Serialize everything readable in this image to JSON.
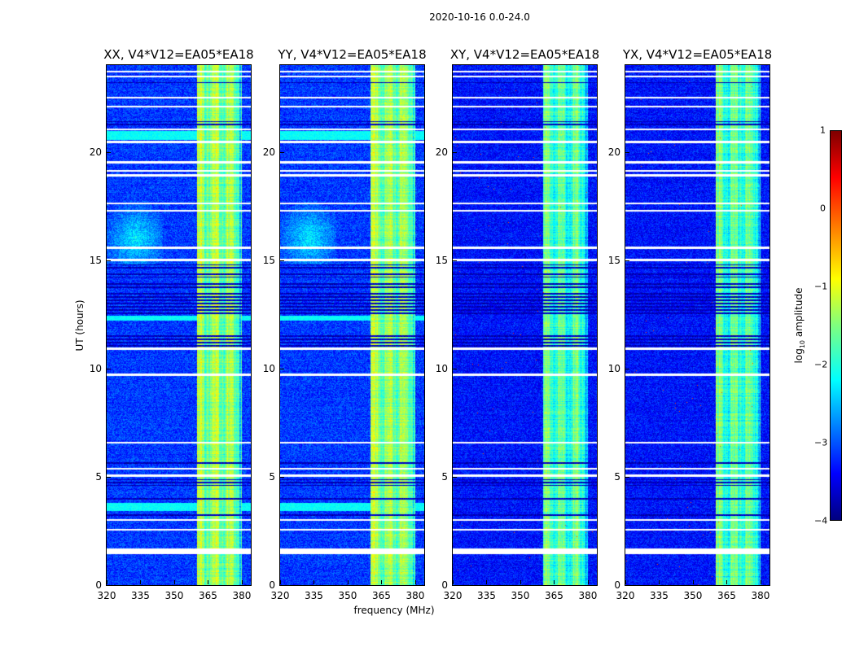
{
  "chart_data": {
    "type": "heatmap",
    "title": "2020-10-16 0.0-24.0",
    "xlabel": "frequency (MHz)",
    "ylabel": "UT (hours)",
    "xlim": [
      320,
      384
    ],
    "ylim": [
      0,
      24
    ],
    "xticks": [
      320,
      335,
      350,
      365,
      380
    ],
    "yticks": [
      0,
      5,
      10,
      15,
      20
    ],
    "colorbar": {
      "label_prefix": "log",
      "label_sub": "10",
      "label_suffix": " amplitude",
      "range": [
        -4,
        1
      ],
      "ticks": [
        "1",
        "0",
        "−1",
        "−2",
        "−3",
        "−4"
      ],
      "colormap": "jet"
    },
    "rfi_band_mhz": [
      360,
      380
    ],
    "flagged_hours": [
      [
        1.42,
        1.68
      ],
      [
        2.5,
        2.6
      ],
      [
        2.95,
        3.05
      ],
      [
        5.0,
        5.12
      ],
      [
        5.32,
        5.42
      ],
      [
        6.52,
        6.6
      ],
      [
        9.65,
        9.75
      ],
      [
        10.85,
        10.95
      ],
      [
        14.95,
        15.05
      ],
      [
        15.5,
        15.62
      ],
      [
        17.25,
        17.32
      ],
      [
        17.58,
        17.65
      ],
      [
        18.85,
        18.95
      ],
      [
        19.08,
        19.15
      ],
      [
        19.45,
        19.55
      ],
      [
        20.4,
        20.5
      ],
      [
        21.0,
        21.06
      ],
      [
        22.05,
        22.12
      ],
      [
        22.45,
        22.52
      ],
      [
        23.42,
        23.5
      ],
      [
        23.66,
        23.74
      ]
    ],
    "dropout_hours": [
      [
        3.1,
        3.3
      ],
      [
        3.9,
        4.1
      ],
      [
        4.6,
        4.9
      ],
      [
        5.6,
        5.7
      ],
      [
        11.0,
        11.6
      ],
      [
        12.5,
        13.5
      ],
      [
        13.7,
        14.0
      ],
      [
        14.2,
        14.4
      ],
      [
        14.6,
        14.8
      ],
      [
        21.2,
        21.4
      ],
      [
        23.1,
        23.2
      ]
    ],
    "panels": [
      {
        "title": "XX, V4*V12=EA05*EA18",
        "background_log_amp": -3.1,
        "band_log_amp": -1.6,
        "cross_pol": false
      },
      {
        "title": "YY, V4*V12=EA05*EA18",
        "background_log_amp": -3.1,
        "band_log_amp": -1.6,
        "cross_pol": false
      },
      {
        "title": "XY, V4*V12=EA05*EA18",
        "background_log_amp": -3.3,
        "band_log_amp": -1.9,
        "cross_pol": true
      },
      {
        "title": "YX, V4*V12=EA05*EA18",
        "background_log_amp": -3.3,
        "band_log_amp": -1.9,
        "cross_pol": true
      }
    ]
  }
}
